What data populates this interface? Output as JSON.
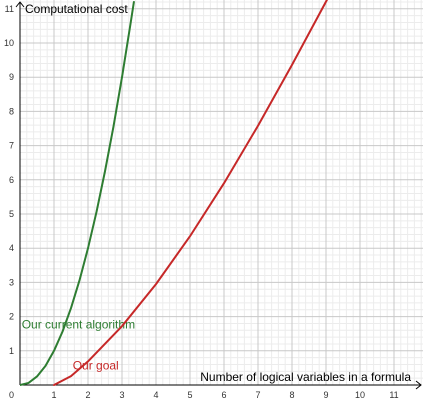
{
  "chart_data": {
    "type": "line",
    "title": "",
    "xlabel": "Number of logical variables in a formula",
    "ylabel": "Computational cost",
    "xlim": [
      0,
      12.1
    ],
    "ylim": [
      0,
      11.2
    ],
    "x_ticks": [
      "1",
      "2",
      "3",
      "4",
      "5",
      "6",
      "7",
      "8",
      "9",
      "10",
      "11"
    ],
    "y_ticks": [
      "1",
      "2",
      "3",
      "4",
      "5",
      "6",
      "7",
      "8",
      "9",
      "10",
      "11"
    ],
    "origin_label": "0",
    "grid": true,
    "minor_grid": true,
    "legend": "inline",
    "series": [
      {
        "name": "Our current algorithm",
        "color": "#2e7d32",
        "label_at": {
          "x": 0.05,
          "y": 1.65
        },
        "points": [
          {
            "x": 0,
            "y": 0
          },
          {
            "x": 0.25,
            "y": 0.06
          },
          {
            "x": 0.5,
            "y": 0.25
          },
          {
            "x": 0.75,
            "y": 0.56
          },
          {
            "x": 1,
            "y": 1
          },
          {
            "x": 1.25,
            "y": 1.56
          },
          {
            "x": 1.5,
            "y": 2.25
          },
          {
            "x": 1.75,
            "y": 3.06
          },
          {
            "x": 2,
            "y": 4
          },
          {
            "x": 2.25,
            "y": 5.06
          },
          {
            "x": 2.5,
            "y": 6.25
          },
          {
            "x": 2.75,
            "y": 7.56
          },
          {
            "x": 3,
            "y": 9
          },
          {
            "x": 3.25,
            "y": 10.56
          },
          {
            "x": 3.35,
            "y": 11.2
          }
        ]
      },
      {
        "name": "Our goal",
        "color": "#c62828",
        "label_at": {
          "x": 1.55,
          "y": 0.45
        },
        "points": [
          {
            "x": 1,
            "y": 0
          },
          {
            "x": 1.5,
            "y": 0.26
          },
          {
            "x": 2,
            "y": 0.69
          },
          {
            "x": 3,
            "y": 1.72
          },
          {
            "x": 4,
            "y": 2.95
          },
          {
            "x": 5,
            "y": 4.35
          },
          {
            "x": 6,
            "y": 5.9
          },
          {
            "x": 7,
            "y": 7.58
          },
          {
            "x": 8,
            "y": 9.36
          },
          {
            "x": 9,
            "y": 11.21
          },
          {
            "x": 9.5,
            "y": 12.15
          }
        ]
      }
    ]
  }
}
